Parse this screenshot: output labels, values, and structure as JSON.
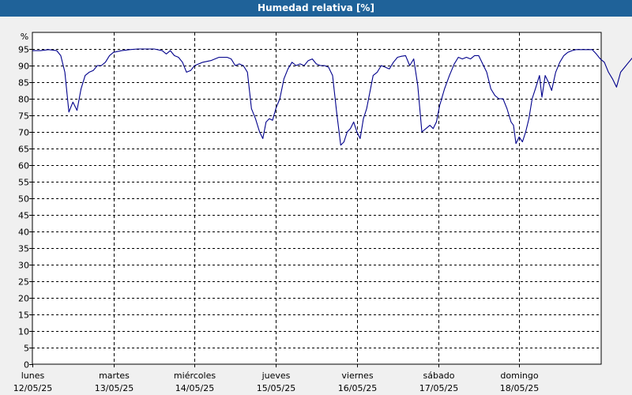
{
  "title": "Humedad relativa [%]",
  "chart_data": {
    "type": "line",
    "title": "Humedad relativa [%]",
    "ylabel": "%",
    "ylim": [
      0,
      100
    ],
    "yticks": [
      0,
      5,
      10,
      15,
      20,
      25,
      30,
      35,
      40,
      45,
      50,
      55,
      60,
      65,
      70,
      75,
      80,
      85,
      90,
      95
    ],
    "grid": true,
    "line_color": "#00008b",
    "days": [
      {
        "weekday": "lunes",
        "date": "12/05/25"
      },
      {
        "weekday": "martes",
        "date": "13/05/25"
      },
      {
        "weekday": "miércoles",
        "date": "14/05/25"
      },
      {
        "weekday": "jueves",
        "date": "15/05/25"
      },
      {
        "weekday": "viernes",
        "date": "16/05/25"
      },
      {
        "weekday": "sábado",
        "date": "17/05/25"
      },
      {
        "weekday": "domingo",
        "date": "18/05/25"
      }
    ],
    "x_unit": "days since 12/05/25 00:00",
    "series": [
      {
        "values": [
          [
            0.0,
            94.5
          ],
          [
            0.1,
            94.5
          ],
          [
            0.2,
            94.8
          ],
          [
            0.3,
            94.5
          ],
          [
            0.35,
            93
          ],
          [
            0.4,
            88
          ],
          [
            0.45,
            76
          ],
          [
            0.5,
            79
          ],
          [
            0.55,
            76.5
          ],
          [
            0.6,
            83
          ],
          [
            0.65,
            87
          ],
          [
            0.7,
            88
          ],
          [
            0.75,
            88.5
          ],
          [
            0.8,
            90
          ],
          [
            0.85,
            90
          ],
          [
            0.9,
            91
          ],
          [
            0.95,
            93
          ],
          [
            1.0,
            94
          ],
          [
            1.1,
            94.5
          ],
          [
            1.2,
            94.8
          ],
          [
            1.3,
            95
          ],
          [
            1.4,
            95
          ],
          [
            1.5,
            95
          ],
          [
            1.6,
            94.5
          ],
          [
            1.65,
            93.5
          ],
          [
            1.7,
            94.5
          ],
          [
            1.75,
            93
          ],
          [
            1.8,
            92.5
          ],
          [
            1.85,
            91
          ],
          [
            1.9,
            88
          ],
          [
            1.95,
            88.5
          ],
          [
            2.0,
            90
          ],
          [
            2.1,
            91
          ],
          [
            2.2,
            91.5
          ],
          [
            2.3,
            92.5
          ],
          [
            2.4,
            92.5
          ],
          [
            2.45,
            92
          ],
          [
            2.5,
            90
          ],
          [
            2.55,
            90.5
          ],
          [
            2.6,
            90
          ],
          [
            2.65,
            88
          ],
          [
            2.7,
            77
          ],
          [
            2.75,
            74
          ],
          [
            2.8,
            70
          ],
          [
            2.84,
            68
          ],
          [
            2.88,
            73
          ],
          [
            2.92,
            74
          ],
          [
            2.96,
            73.5
          ],
          [
            3.0,
            77
          ],
          [
            3.05,
            80
          ],
          [
            3.1,
            86
          ],
          [
            3.15,
            89
          ],
          [
            3.2,
            91
          ],
          [
            3.25,
            90
          ],
          [
            3.3,
            90.5
          ],
          [
            3.35,
            90
          ],
          [
            3.4,
            91.5
          ],
          [
            3.45,
            92
          ],
          [
            3.5,
            90.5
          ],
          [
            3.55,
            90
          ],
          [
            3.6,
            90
          ],
          [
            3.65,
            89.5
          ],
          [
            3.7,
            87
          ],
          [
            3.75,
            76
          ],
          [
            3.8,
            66
          ],
          [
            3.84,
            67
          ],
          [
            3.88,
            70
          ],
          [
            3.92,
            71
          ],
          [
            3.96,
            73
          ],
          [
            4.0,
            70
          ],
          [
            4.04,
            68
          ],
          [
            4.08,
            74
          ],
          [
            4.12,
            77
          ],
          [
            4.16,
            82
          ],
          [
            4.2,
            87
          ],
          [
            4.25,
            88
          ],
          [
            4.3,
            90
          ],
          [
            4.35,
            89.5
          ],
          [
            4.4,
            89
          ],
          [
            4.45,
            91
          ],
          [
            4.5,
            92.5
          ],
          [
            4.55,
            92.8
          ],
          [
            4.6,
            93
          ],
          [
            4.65,
            90
          ],
          [
            4.7,
            92
          ],
          [
            4.75,
            84
          ],
          [
            4.8,
            70
          ],
          [
            4.85,
            71
          ],
          [
            4.9,
            72
          ],
          [
            4.94,
            71
          ],
          [
            4.98,
            73
          ],
          [
            5.02,
            78
          ],
          [
            5.08,
            83
          ],
          [
            5.14,
            87
          ],
          [
            5.2,
            90.5
          ],
          [
            5.25,
            92.5
          ],
          [
            5.3,
            92
          ],
          [
            5.35,
            92.5
          ],
          [
            5.4,
            92
          ],
          [
            5.45,
            93
          ],
          [
            5.5,
            93
          ],
          [
            5.55,
            90.5
          ],
          [
            5.6,
            88
          ],
          [
            5.65,
            83
          ],
          [
            5.7,
            81
          ],
          [
            5.75,
            80
          ],
          [
            5.8,
            80
          ],
          [
            5.85,
            77
          ],
          [
            5.9,
            73
          ],
          [
            5.93,
            72
          ],
          [
            5.96,
            66.5
          ],
          [
            6.0,
            68.5
          ],
          [
            6.04,
            67
          ],
          [
            6.08,
            70
          ],
          [
            6.12,
            74
          ],
          [
            6.16,
            80
          ],
          [
            6.2,
            83
          ],
          [
            6.25,
            87
          ],
          [
            6.28,
            80.5
          ],
          [
            6.32,
            87
          ],
          [
            6.36,
            85
          ],
          [
            6.4,
            82.5
          ],
          [
            6.45,
            88
          ],
          [
            6.5,
            91
          ],
          [
            6.55,
            93
          ],
          [
            6.6,
            94
          ],
          [
            6.65,
            94.5
          ],
          [
            6.7,
            94.8
          ],
          [
            6.8,
            94.8
          ],
          [
            6.9,
            94.8
          ],
          [
            6.95,
            93.5
          ],
          [
            7.0,
            92
          ],
          [
            7.05,
            91
          ],
          [
            7.1,
            88
          ],
          [
            7.15,
            86
          ],
          [
            7.2,
            83.5
          ],
          [
            7.25,
            88
          ],
          [
            7.3,
            89.5
          ],
          [
            7.35,
            91
          ],
          [
            7.4,
            92.5
          ],
          [
            7.45,
            93
          ]
        ]
      }
    ]
  }
}
